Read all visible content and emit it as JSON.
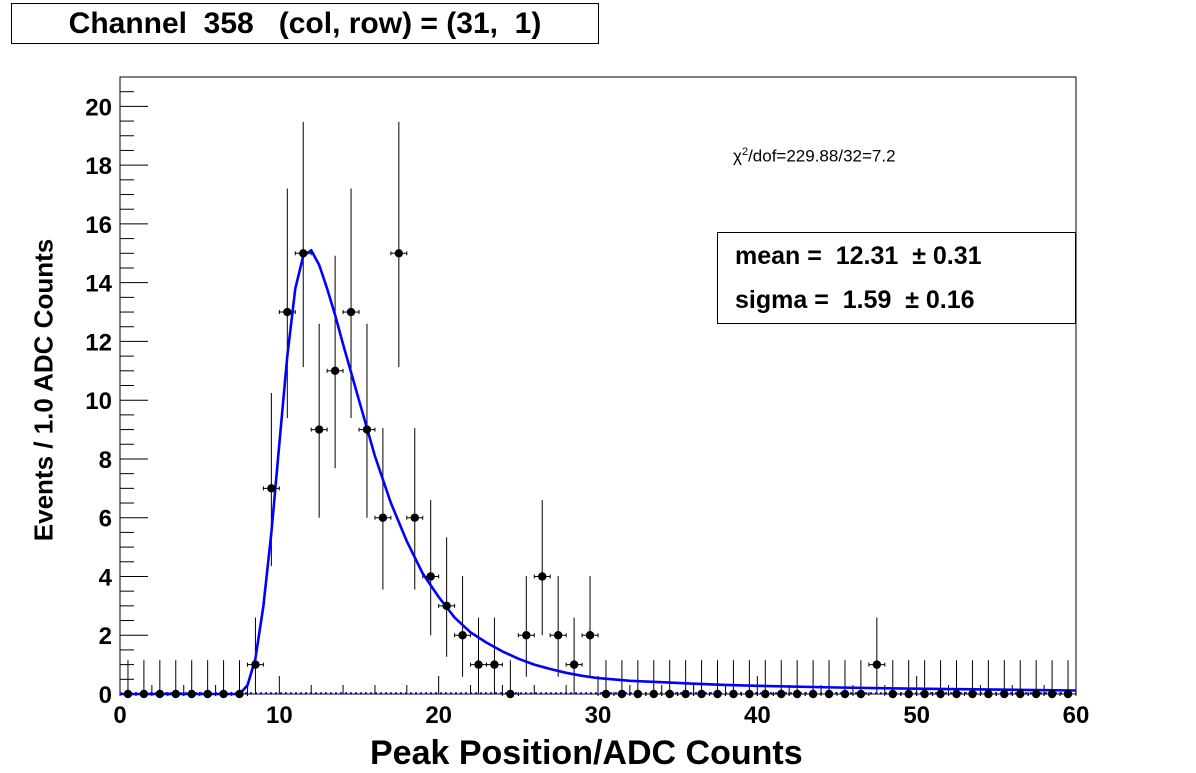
{
  "title": "Channel  358   (col, row) = (31,  1)",
  "fit_text": {
    "chi2_symbol": "χ",
    "chi2_sup": "2",
    "chi2_rest": "/dof=229.88/32=7.2",
    "mean_line": "mean =  12.31  ± 0.31",
    "sigma_line": "sigma =  1.59  ± 0.16"
  },
  "colors": {
    "points": "#000000",
    "fit": "#0000ff",
    "frame": "#000000"
  },
  "chart_data": {
    "type": "scatter",
    "xlabel": "Peak Position/ADC Counts",
    "ylabel": "Events / 1.0 ADC Counts",
    "xlim": [
      0,
      60
    ],
    "ylim": [
      0,
      21
    ],
    "x_ticks": [
      0,
      10,
      20,
      30,
      40,
      50,
      60
    ],
    "y_ticks": [
      0,
      2,
      4,
      6,
      8,
      10,
      12,
      14,
      16,
      18,
      20
    ],
    "grid": false,
    "bin_width": 1.0,
    "series": [
      {
        "x": [
          0.5,
          1.5,
          2.5,
          3.5,
          4.5,
          5.5,
          6.5,
          7.5,
          8.5,
          9.5,
          10.5,
          11.5,
          12.5,
          13.5,
          14.5,
          15.5,
          16.5,
          17.5,
          18.5,
          19.5,
          20.5,
          21.5,
          22.5,
          23.5,
          24.5,
          25.5,
          26.5,
          27.5,
          28.5,
          29.5,
          30.5,
          31.5,
          32.5,
          33.5,
          34.5,
          35.5,
          36.5,
          37.5,
          38.5,
          39.5,
          40.5,
          41.5,
          42.5,
          43.5,
          44.5,
          45.5,
          46.5,
          47.5,
          48.5,
          49.5,
          50.5,
          51.5,
          52.5,
          53.5,
          54.5,
          55.5,
          56.5,
          57.5,
          58.5,
          59.5
        ],
        "y": [
          0,
          0,
          0,
          0,
          0,
          0,
          0,
          0,
          1,
          7,
          13,
          15,
          9,
          11,
          13,
          9,
          6,
          15,
          6,
          4,
          3,
          2,
          1,
          1,
          0,
          2,
          4,
          2,
          1,
          2,
          0,
          0,
          0,
          0,
          0,
          0,
          0,
          0,
          0,
          0,
          0,
          0,
          0,
          0,
          0,
          0,
          0,
          1,
          0,
          0,
          0,
          0,
          0,
          0,
          0,
          0,
          0,
          0,
          0,
          0
        ]
      }
    ],
    "fit_curve": {
      "x": [
        0,
        7.5,
        8,
        8.5,
        9,
        9.5,
        10,
        10.5,
        11,
        11.5,
        12,
        12.5,
        13,
        13.5,
        14,
        15,
        16,
        17,
        18,
        19,
        20,
        21,
        22,
        23,
        24,
        25,
        26,
        27,
        28,
        29,
        30,
        32,
        34,
        36,
        38,
        40,
        45,
        50,
        55,
        60
      ],
      "y": [
        0,
        0,
        0.3,
        1.2,
        3,
        5.5,
        8.5,
        11.5,
        13.8,
        14.9,
        15.1,
        14.6,
        13.8,
        12.9,
        11.9,
        10,
        8.1,
        6.5,
        5.2,
        4.1,
        3.3,
        2.6,
        2.1,
        1.75,
        1.45,
        1.2,
        1.0,
        0.85,
        0.72,
        0.62,
        0.54,
        0.45,
        0.4,
        0.35,
        0.31,
        0.28,
        0.22,
        0.18,
        0.15,
        0.12
      ]
    }
  }
}
